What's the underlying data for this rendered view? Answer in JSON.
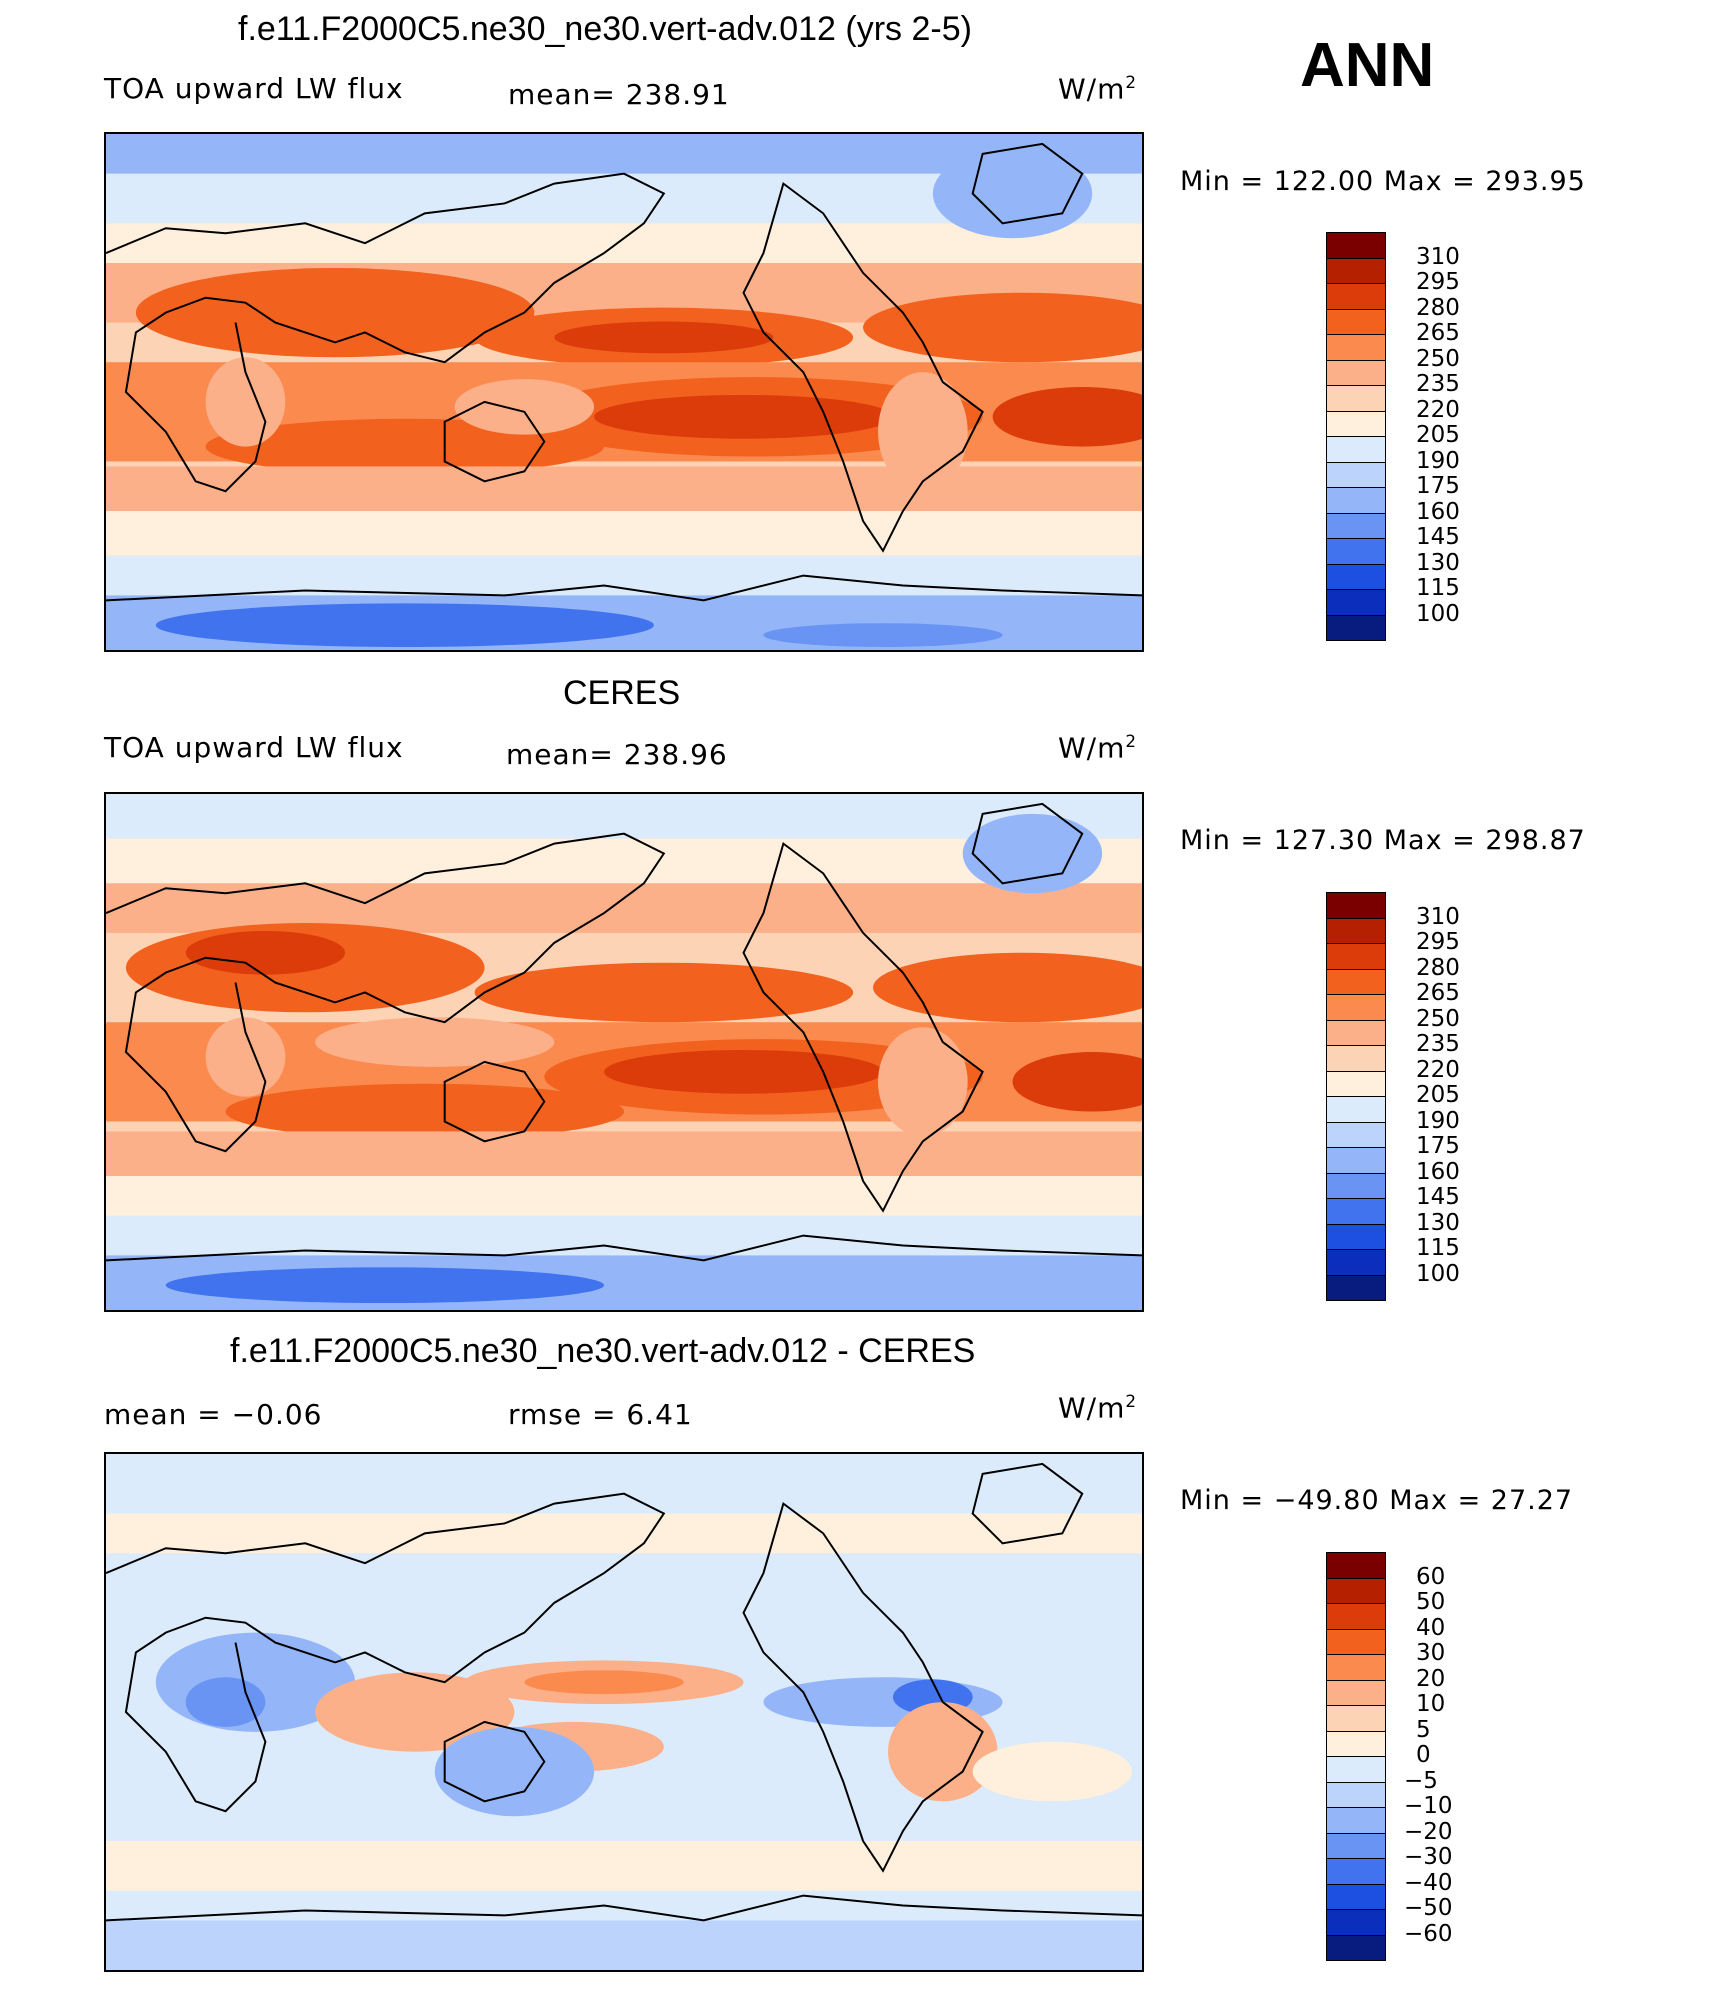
{
  "season": "ANN",
  "panels": [
    {
      "title": "f.e11.F2000C5.ne30_ne30.vert-adv.012 (yrs 2-5)",
      "left_label": "TOA upward LW flux",
      "center_label": "mean= 238.91",
      "units": "W/m",
      "units_sup": "2",
      "minmax": "Min  =  122.00  Max  =  293.95",
      "colorbar_labels": [
        "310",
        "295",
        "280",
        "265",
        "250",
        "235",
        "220",
        "205",
        "190",
        "175",
        "160",
        "145",
        "130",
        "115",
        "100"
      ],
      "colors": [
        "#7a0000",
        "#b52000",
        "#dc3b0a",
        "#f2611d",
        "#fb8a4f",
        "#fcb08a",
        "#fdd3b6",
        "#fff0dd",
        "#dcebfb",
        "#bcd4fb",
        "#94b6f8",
        "#6a94f3",
        "#4173ee",
        "#1d4fe1",
        "#0b2fbc",
        "#081b7e"
      ],
      "chart_data": {
        "type": "heatmap",
        "title": "f.e11.F2000C5.ne30_ne30.vert-adv.012 (yrs 2-5)",
        "variable": "TOA upward LW flux",
        "units": "W/m2",
        "mean": 238.91,
        "min": 122.0,
        "max": 293.95,
        "contour_levels": [
          100,
          115,
          130,
          145,
          160,
          175,
          190,
          205,
          220,
          235,
          250,
          265,
          280,
          295,
          310
        ]
      }
    },
    {
      "title": "CERES",
      "left_label": "TOA upward LW flux",
      "center_label": "mean= 238.96",
      "units": "W/m",
      "units_sup": "2",
      "minmax": "Min  =  127.30  Max  =  298.87",
      "colorbar_labels": [
        "310",
        "295",
        "280",
        "265",
        "250",
        "235",
        "220",
        "205",
        "190",
        "175",
        "160",
        "145",
        "130",
        "115",
        "100"
      ],
      "colors": [
        "#7a0000",
        "#b52000",
        "#dc3b0a",
        "#f2611d",
        "#fb8a4f",
        "#fcb08a",
        "#fdd3b6",
        "#fff0dd",
        "#dcebfb",
        "#bcd4fb",
        "#94b6f8",
        "#6a94f3",
        "#4173ee",
        "#1d4fe1",
        "#0b2fbc",
        "#081b7e"
      ],
      "chart_data": {
        "type": "heatmap",
        "title": "CERES",
        "variable": "TOA upward LW flux",
        "units": "W/m2",
        "mean": 238.96,
        "min": 127.3,
        "max": 298.87,
        "contour_levels": [
          100,
          115,
          130,
          145,
          160,
          175,
          190,
          205,
          220,
          235,
          250,
          265,
          280,
          295,
          310
        ]
      }
    },
    {
      "title": "f.e11.F2000C5.ne30_ne30.vert-adv.012 - CERES",
      "left_label": "mean =    −0.06",
      "center_label": "rmse =     6.41",
      "units": "W/m",
      "units_sup": "2",
      "minmax": "Min  =  −49.80  Max  =    27.27",
      "colorbar_labels": [
        "60",
        "50",
        "40",
        "30",
        "20",
        "10",
        "5",
        "0",
        "−5",
        "−10",
        "−20",
        "−30",
        "−40",
        "−50",
        "−60"
      ],
      "colors": [
        "#7a0000",
        "#b52000",
        "#dc3b0a",
        "#f2611d",
        "#fb8a4f",
        "#fcb08a",
        "#fdd3b6",
        "#fff0dd",
        "#dcebfb",
        "#bcd4fb",
        "#94b6f8",
        "#6a94f3",
        "#4173ee",
        "#1d4fe1",
        "#0b2fbc",
        "#081b7e"
      ],
      "chart_data": {
        "type": "heatmap",
        "title": "f.e11.F2000C5.ne30_ne30.vert-adv.012 - CERES",
        "units": "W/m2",
        "mean": -0.06,
        "rmse": 6.41,
        "min": -49.8,
        "max": 27.27,
        "contour_levels": [
          -60,
          -50,
          -40,
          -30,
          -20,
          -10,
          -5,
          0,
          5,
          10,
          20,
          30,
          40,
          50,
          60
        ]
      }
    }
  ]
}
